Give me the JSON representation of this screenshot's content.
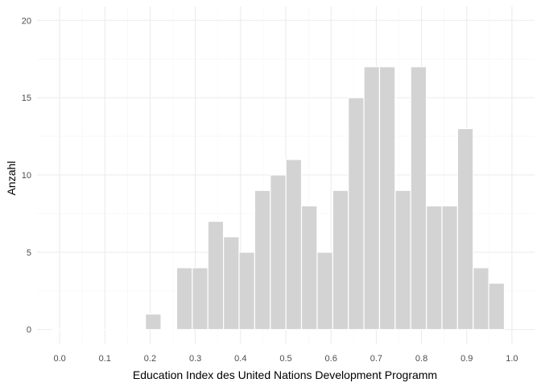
{
  "chart_data": {
    "type": "bar",
    "xlabel": "Education Index des United Nations Development Programm",
    "ylabel": "Anzahl",
    "xlim": [
      -0.05,
      1.05
    ],
    "ylim": [
      -0.9,
      20.9
    ],
    "x_ticks": [
      0.0,
      0.1,
      0.2,
      0.3,
      0.4,
      0.5,
      0.6,
      0.7,
      0.8,
      0.9,
      1.0
    ],
    "x_tick_labels": [
      "0.0",
      "0.1",
      "0.2",
      "0.3",
      "0.4",
      "0.5",
      "0.6",
      "0.7",
      "0.8",
      "0.9",
      "1.0"
    ],
    "y_ticks": [
      0,
      5,
      10,
      15,
      20
    ],
    "y_tick_labels": [
      "0",
      "5",
      "10",
      "15",
      "20"
    ],
    "bin_width": 0.0345,
    "bins": [
      {
        "x": 0.0,
        "count": 0
      },
      {
        "x": 0.0345,
        "count": 0
      },
      {
        "x": 0.069,
        "count": 0
      },
      {
        "x": 0.1035,
        "count": 0
      },
      {
        "x": 0.138,
        "count": 0
      },
      {
        "x": 0.1725,
        "count": 0
      },
      {
        "x": 0.207,
        "count": 1
      },
      {
        "x": 0.2415,
        "count": 0
      },
      {
        "x": 0.276,
        "count": 4
      },
      {
        "x": 0.3105,
        "count": 4
      },
      {
        "x": 0.345,
        "count": 7
      },
      {
        "x": 0.3795,
        "count": 6
      },
      {
        "x": 0.414,
        "count": 5
      },
      {
        "x": 0.4485,
        "count": 9
      },
      {
        "x": 0.483,
        "count": 10
      },
      {
        "x": 0.5175,
        "count": 11
      },
      {
        "x": 0.552,
        "count": 8
      },
      {
        "x": 0.5865,
        "count": 5
      },
      {
        "x": 0.621,
        "count": 9
      },
      {
        "x": 0.6555,
        "count": 15
      },
      {
        "x": 0.69,
        "count": 17
      },
      {
        "x": 0.7245,
        "count": 17
      },
      {
        "x": 0.759,
        "count": 9
      },
      {
        "x": 0.7935,
        "count": 17
      },
      {
        "x": 0.828,
        "count": 8
      },
      {
        "x": 0.8625,
        "count": 8
      },
      {
        "x": 0.897,
        "count": 13
      },
      {
        "x": 0.9315,
        "count": 4
      },
      {
        "x": 0.966,
        "count": 3
      }
    ],
    "grid": true,
    "colors": {
      "bar_fill": "#d3d3d3",
      "bar_stroke": "#ffffff",
      "grid_major": "#ebebeb",
      "grid_minor": "#f5f5f5"
    }
  }
}
